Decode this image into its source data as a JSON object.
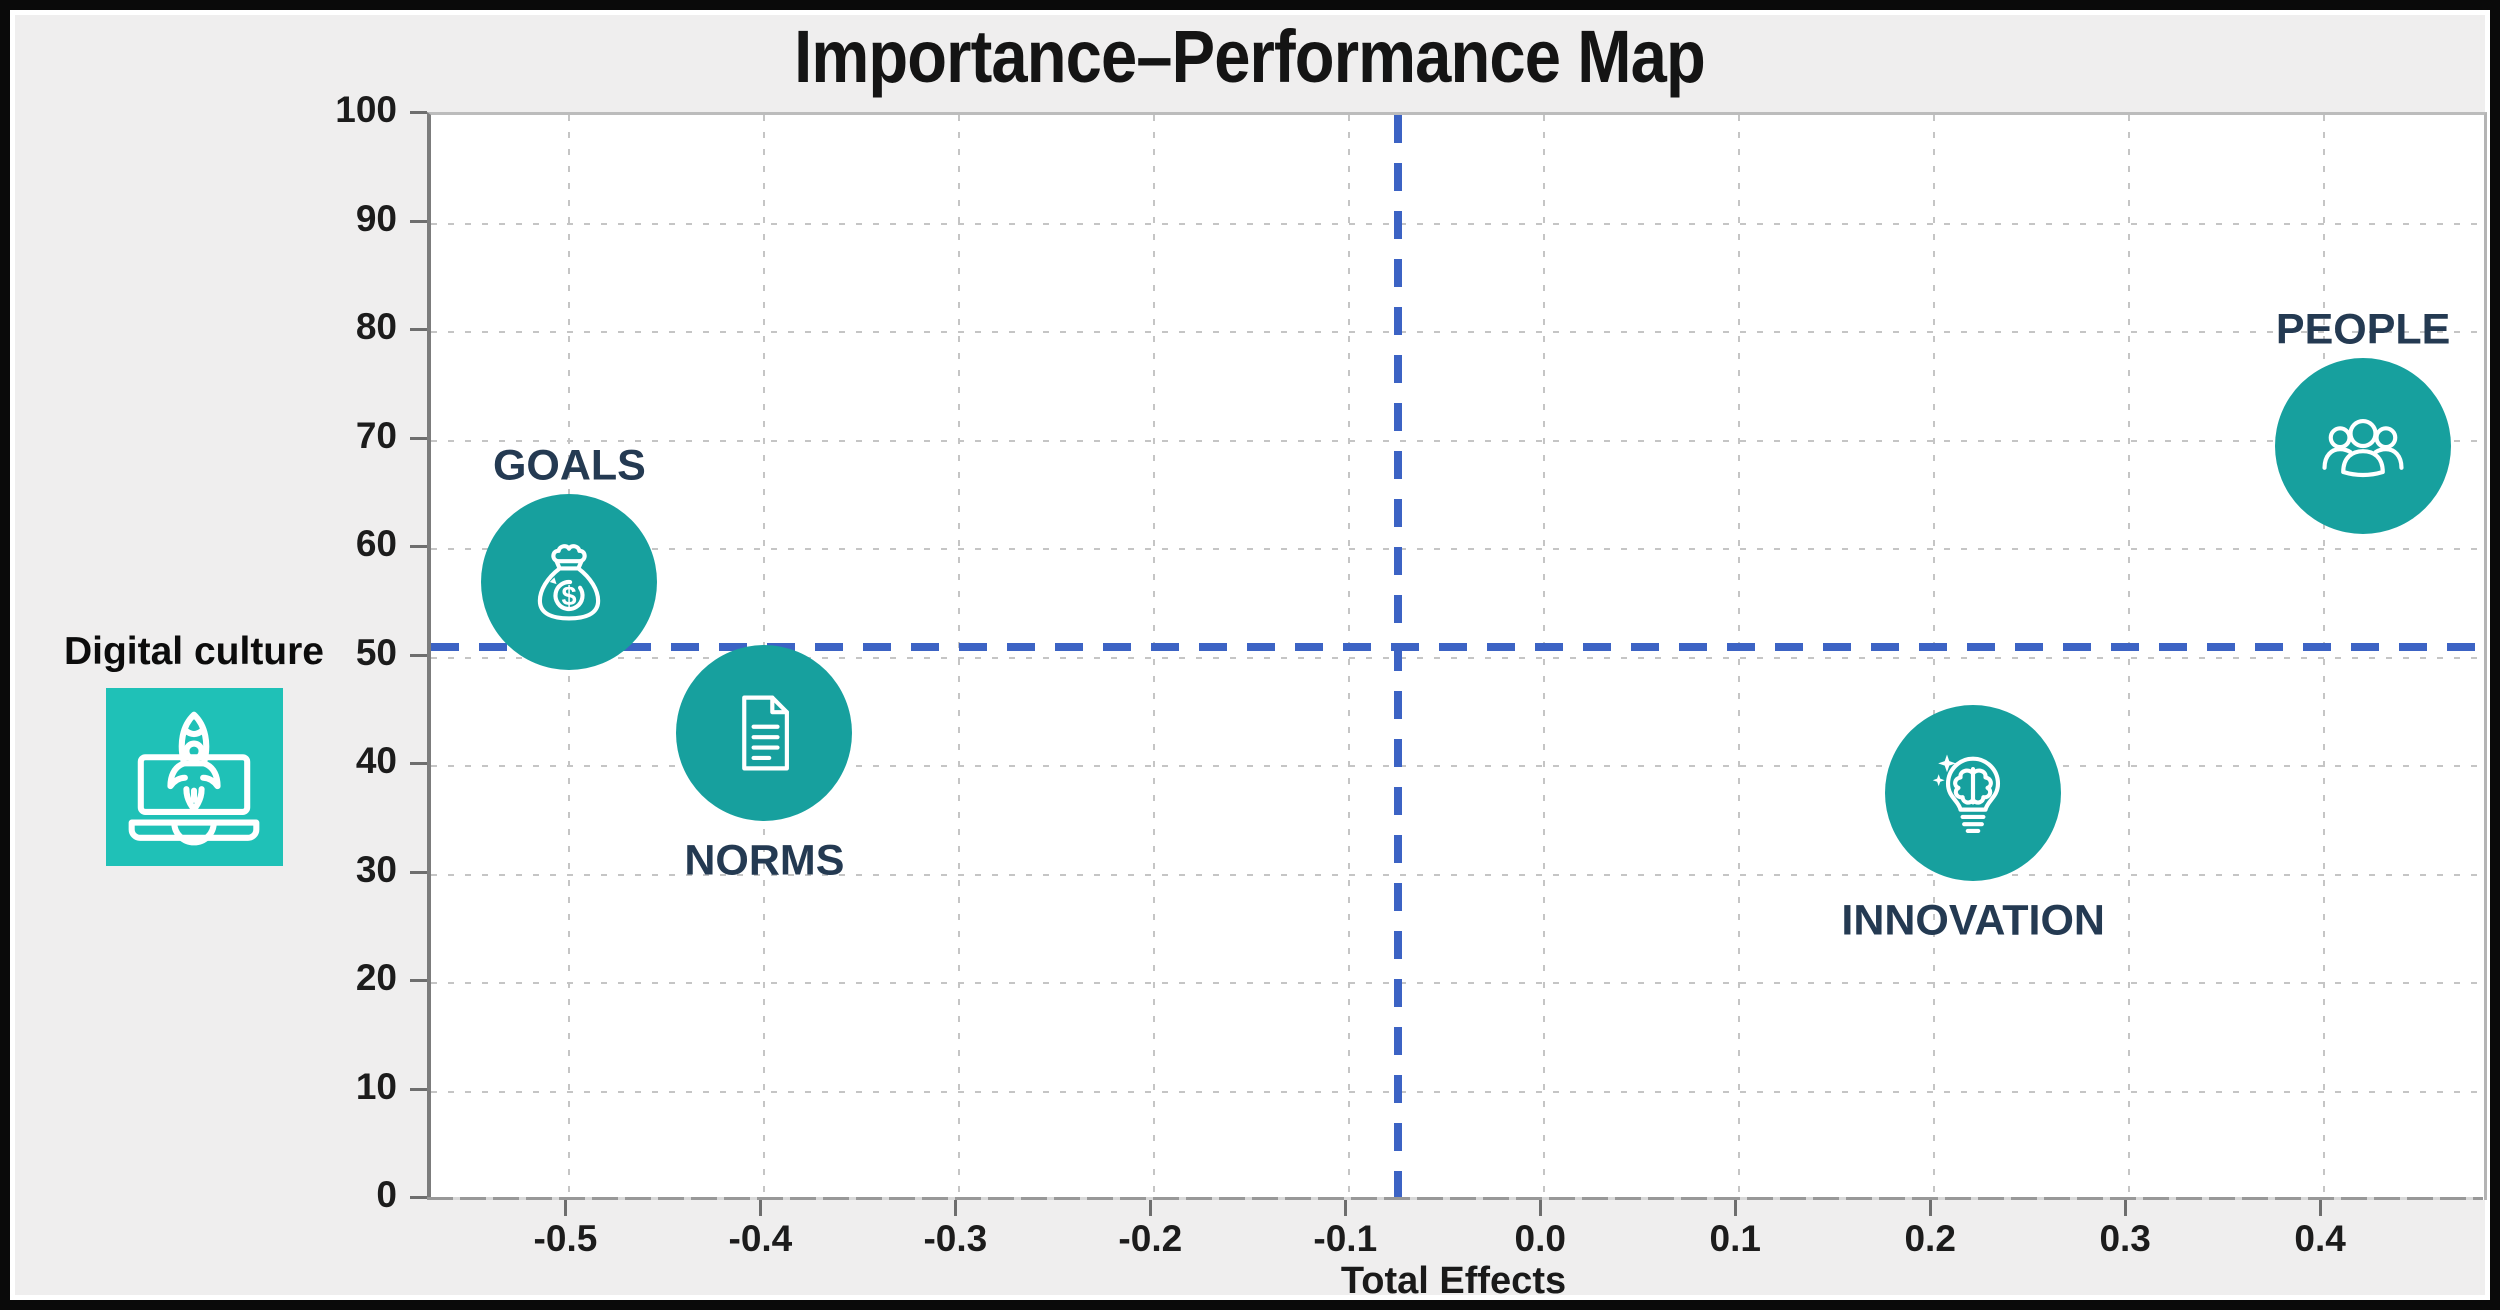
{
  "title": "Importance–Performance Map",
  "left_annotation": {
    "label": "Digital culture",
    "icon": "laptop-rocket-icon"
  },
  "chart_data": {
    "type": "scatter",
    "title": "Importance–Performance Map",
    "xlabel": "Total Effects",
    "ylabel": "",
    "xlim": [
      -0.571,
      0.482
    ],
    "ylim": [
      0,
      100
    ],
    "x_ticks": [
      -0.5,
      -0.4,
      -0.3,
      -0.2,
      -0.1,
      0.0,
      0.1,
      0.2,
      0.3,
      0.4
    ],
    "y_ticks": [
      0,
      10,
      20,
      30,
      40,
      50,
      60,
      70,
      80,
      90,
      100
    ],
    "grid": true,
    "legend": "none",
    "crosshair": {
      "x": -0.075,
      "y": 51
    },
    "points": [
      {
        "label": "GOALS",
        "x": -0.5,
        "y": 57.0,
        "icon": "money-bag-icon",
        "label_position": "above"
      },
      {
        "label": "NORMS",
        "x": -0.4,
        "y": 43.0,
        "icon": "document-icon",
        "label_position": "below"
      },
      {
        "label": "INNOVATION",
        "x": 0.22,
        "y": 37.5,
        "icon": "brain-bulb-icon",
        "label_position": "below"
      },
      {
        "label": "PEOPLE",
        "x": 0.42,
        "y": 69.5,
        "icon": "people-icon",
        "label_position": "above"
      }
    ]
  },
  "colors": {
    "node_fill": "#17a09e",
    "icon_stroke": "#ffffff",
    "crosshair": "#3c63c4",
    "point_label": "#243a52",
    "annotation_square": "#1fc1b7",
    "background": "#efeeee",
    "plot_background": "#ffffff",
    "grid": "#c5c5c5"
  }
}
